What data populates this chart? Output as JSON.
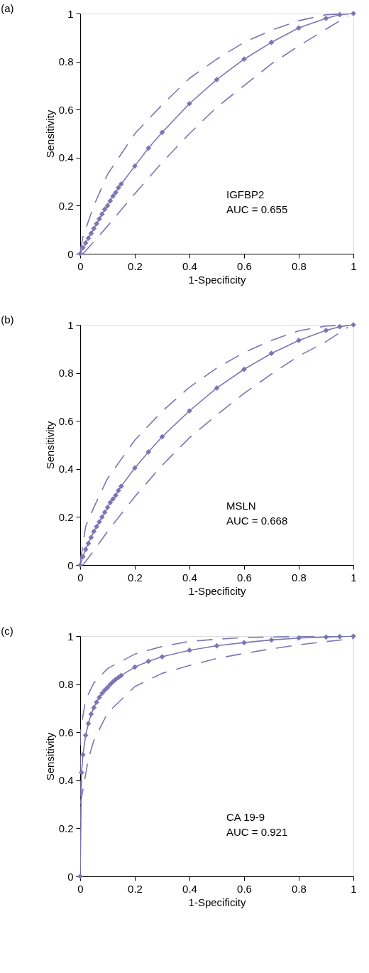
{
  "chart_data": [
    {
      "type": "line",
      "title": "(a)",
      "xlabel": "1-Specificity",
      "ylabel": "Sensitivity",
      "annotations": [
        "IGFBP2",
        "AUC = 0.655"
      ],
      "xlim": [
        0,
        1
      ],
      "ylim": [
        0,
        1
      ],
      "xticks": [
        0,
        0.2,
        0.4,
        0.6,
        0.8,
        1
      ],
      "yticks": [
        0,
        0.2,
        0.4,
        0.6,
        0.8,
        1
      ],
      "grid": false,
      "series": [
        {
          "color": "#7a76b6",
          "marker": "diamond",
          "line_style": "solid",
          "x": [
            0,
            0.01,
            0.02,
            0.03,
            0.04,
            0.05,
            0.06,
            0.07,
            0.08,
            0.09,
            0.1,
            0.11,
            0.12,
            0.13,
            0.14,
            0.15,
            0.2,
            0.25,
            0.3,
            0.4,
            0.5,
            0.6,
            0.7,
            0.8,
            0.9,
            0.95,
            1
          ],
          "values": [
            0,
            0.025,
            0.045,
            0.065,
            0.085,
            0.105,
            0.125,
            0.145,
            0.165,
            0.185,
            0.2,
            0.22,
            0.24,
            0.255,
            0.275,
            0.29,
            0.365,
            0.44,
            0.505,
            0.625,
            0.725,
            0.81,
            0.88,
            0.94,
            0.98,
            0.995,
            1
          ]
        },
        {
          "color": "#7a76b6",
          "marker": "none",
          "line_style": "dashed",
          "x": [
            0,
            0.01,
            0.05,
            0.1,
            0.2,
            0.3,
            0.4,
            0.5,
            0.6,
            0.7,
            0.8,
            0.9,
            1
          ],
          "values": [
            0.01,
            0.07,
            0.2,
            0.33,
            0.5,
            0.62,
            0.73,
            0.81,
            0.88,
            0.93,
            0.97,
            0.995,
            1
          ]
        },
        {
          "color": "#7a76b6",
          "marker": "none",
          "line_style": "dashed",
          "x": [
            0.01,
            0.05,
            0.1,
            0.2,
            0.3,
            0.4,
            0.5,
            0.6,
            0.7,
            0.8,
            0.9,
            0.98
          ],
          "values": [
            0,
            0.05,
            0.115,
            0.25,
            0.38,
            0.5,
            0.61,
            0.7,
            0.79,
            0.865,
            0.935,
            0.99
          ]
        }
      ]
    },
    {
      "type": "line",
      "title": "(b)",
      "xlabel": "1-Specificity",
      "ylabel": "Sensitivity",
      "annotations": [
        "MSLN",
        "AUC = 0.668"
      ],
      "xlim": [
        0,
        1
      ],
      "ylim": [
        0,
        1
      ],
      "xticks": [
        0,
        0.2,
        0.4,
        0.6,
        0.8,
        1
      ],
      "yticks": [
        0,
        0.2,
        0.4,
        0.6,
        0.8,
        1
      ],
      "grid": false,
      "series": [
        {
          "color": "#7a76b6",
          "marker": "diamond",
          "line_style": "solid",
          "x": [
            0,
            0.01,
            0.02,
            0.03,
            0.04,
            0.05,
            0.06,
            0.07,
            0.08,
            0.09,
            0.1,
            0.11,
            0.12,
            0.13,
            0.14,
            0.15,
            0.2,
            0.25,
            0.3,
            0.4,
            0.5,
            0.6,
            0.7,
            0.8,
            0.9,
            0.95,
            1
          ],
          "values": [
            0,
            0.035,
            0.065,
            0.09,
            0.115,
            0.14,
            0.16,
            0.18,
            0.2,
            0.22,
            0.24,
            0.26,
            0.275,
            0.29,
            0.31,
            0.328,
            0.404,
            0.471,
            0.534,
            0.642,
            0.737,
            0.815,
            0.881,
            0.935,
            0.977,
            0.992,
            1
          ]
        },
        {
          "color": "#7a76b6",
          "marker": "none",
          "line_style": "dashed",
          "x": [
            0,
            0.02,
            0.05,
            0.1,
            0.2,
            0.3,
            0.4,
            0.5,
            0.6,
            0.7,
            0.8,
            0.9,
            1
          ],
          "values": [
            0.01,
            0.16,
            0.24,
            0.36,
            0.52,
            0.64,
            0.74,
            0.82,
            0.885,
            0.935,
            0.975,
            0.995,
            1
          ]
        },
        {
          "color": "#7a76b6",
          "marker": "none",
          "line_style": "dashed",
          "x": [
            0.01,
            0.05,
            0.1,
            0.2,
            0.3,
            0.4,
            0.5,
            0.6,
            0.7,
            0.8,
            0.9,
            0.98
          ],
          "values": [
            0,
            0.06,
            0.14,
            0.285,
            0.415,
            0.53,
            0.625,
            0.715,
            0.795,
            0.87,
            0.93,
            0.99
          ]
        }
      ]
    },
    {
      "type": "line",
      "title": "(c)",
      "xlabel": "1-Specificity",
      "ylabel": "Sensitivity",
      "annotations": [
        "CA 19-9",
        "AUC = 0.921"
      ],
      "xlim": [
        0,
        1
      ],
      "ylim": [
        0,
        1
      ],
      "xticks": [
        0,
        0.2,
        0.4,
        0.6,
        0.8,
        1
      ],
      "yticks": [
        0,
        0.2,
        0.4,
        0.6,
        0.8,
        1
      ],
      "grid": false,
      "series": [
        {
          "color": "#7a76b6",
          "marker": "diamond",
          "line_style": "solid",
          "x": [
            0,
            0.005,
            0.01,
            0.02,
            0.03,
            0.04,
            0.05,
            0.06,
            0.07,
            0.08,
            0.09,
            0.1,
            0.11,
            0.12,
            0.13,
            0.14,
            0.15,
            0.2,
            0.25,
            0.3,
            0.4,
            0.5,
            0.6,
            0.7,
            0.8,
            0.9,
            0.95,
            1
          ],
          "values": [
            0,
            0.432,
            0.506,
            0.587,
            0.636,
            0.675,
            0.702,
            0.725,
            0.745,
            0.762,
            0.775,
            0.786,
            0.799,
            0.81,
            0.82,
            0.828,
            0.836,
            0.871,
            0.895,
            0.914,
            0.941,
            0.96,
            0.973,
            0.984,
            0.992,
            0.996,
            0.998,
            1
          ]
        },
        {
          "color": "#7a76b6",
          "marker": "none",
          "line_style": "dashed",
          "x": [
            0,
            0,
            0.02,
            0.05,
            0.1,
            0.2,
            0.3,
            0.4,
            0.5,
            0.6,
            0.7,
            0.8,
            0.9,
            1
          ],
          "values": [
            0.12,
            0.6,
            0.735,
            0.805,
            0.865,
            0.925,
            0.957,
            0.978,
            0.987,
            0.994,
            0.996,
            0.998,
            1,
            1
          ]
        },
        {
          "color": "#7a76b6",
          "marker": "none",
          "line_style": "dashed",
          "x": [
            0,
            0.01,
            0.03,
            0.05,
            0.1,
            0.2,
            0.3,
            0.4,
            0.5,
            0.6,
            0.7,
            0.8,
            0.9,
            1
          ],
          "values": [
            0.3,
            0.36,
            0.49,
            0.565,
            0.68,
            0.79,
            0.845,
            0.878,
            0.907,
            0.928,
            0.947,
            0.964,
            0.977,
            0.99
          ]
        }
      ]
    }
  ]
}
